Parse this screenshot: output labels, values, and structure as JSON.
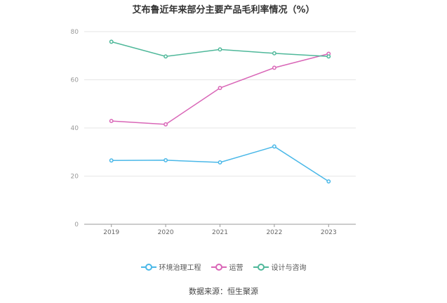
{
  "chart_data": {
    "type": "line",
    "title": "艾布鲁近年来部分主要产品毛利率情况（%）",
    "categories": [
      "2019",
      "2020",
      "2021",
      "2022",
      "2023"
    ],
    "ylim": [
      0,
      80
    ],
    "yticks": [
      "0",
      "20",
      "40",
      "60",
      "80"
    ],
    "grid": true,
    "legend_position": "bottom",
    "series": [
      {
        "name": "环境治理工程",
        "color": "#4ab8e8",
        "values": [
          26.5,
          26.6,
          25.7,
          32.3,
          17.8
        ]
      },
      {
        "name": "运营",
        "color": "#d966b7",
        "values": [
          42.9,
          41.5,
          56.6,
          65.0,
          70.8
        ]
      },
      {
        "name": "设计与咨询",
        "color": "#4fb89a",
        "values": [
          75.8,
          69.7,
          72.6,
          71.0,
          69.7
        ]
      }
    ]
  },
  "source": "数据来源：恒生聚源"
}
